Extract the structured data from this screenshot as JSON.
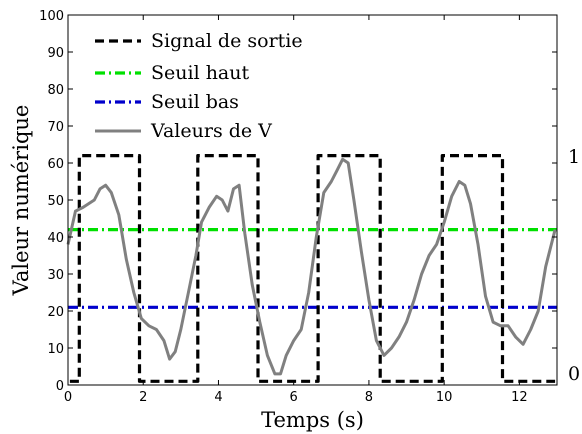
{
  "chart_data": {
    "type": "line",
    "xlabel": "Temps (s)",
    "ylabel": "Valeur numérique",
    "xlim": [
      0,
      13
    ],
    "ylim": [
      0,
      100
    ],
    "x_ticks": [
      0,
      2,
      4,
      6,
      8,
      10,
      12
    ],
    "y_ticks": [
      0,
      10,
      20,
      30,
      40,
      50,
      60,
      70,
      80,
      90,
      100
    ],
    "right_axis_ticks": [
      "1",
      "0"
    ],
    "legend_position": "top-left",
    "grid": false,
    "series": [
      {
        "name": "Signal de sortie",
        "style": "dashed",
        "color": "#000000",
        "x": [
          0.05,
          0.3,
          0.3,
          1.9,
          1.9,
          3.45,
          3.45,
          5.05,
          5.05,
          6.65,
          6.65,
          8.3,
          8.3,
          9.95,
          9.95,
          11.55,
          11.55,
          12.95
        ],
        "y": [
          1,
          1,
          62,
          62,
          1,
          1,
          62,
          62,
          1,
          1,
          62,
          62,
          1,
          1,
          62,
          62,
          1,
          1
        ]
      },
      {
        "name": "Seuil haut",
        "style": "dash-dot",
        "color": "#00e000",
        "x": [
          0,
          13
        ],
        "y": [
          42,
          42
        ]
      },
      {
        "name": "Seuil bas",
        "style": "dash-dot",
        "color": "#0000cc",
        "x": [
          0,
          13
        ],
        "y": [
          21,
          21
        ]
      },
      {
        "name": "Valeurs de V",
        "style": "solid",
        "color": "#808080",
        "x": [
          0,
          0.2,
          0.4,
          0.7,
          0.85,
          1.0,
          1.15,
          1.35,
          1.55,
          1.75,
          1.95,
          2.15,
          2.35,
          2.55,
          2.7,
          2.85,
          3.0,
          3.2,
          3.4,
          3.55,
          3.75,
          3.95,
          4.1,
          4.25,
          4.4,
          4.55,
          4.7,
          4.9,
          5.1,
          5.3,
          5.5,
          5.65,
          5.8,
          6.0,
          6.2,
          6.4,
          6.6,
          6.8,
          7.0,
          7.15,
          7.3,
          7.45,
          7.6,
          7.8,
          8.0,
          8.2,
          8.4,
          8.6,
          8.8,
          9.0,
          9.2,
          9.4,
          9.6,
          9.8,
          10.0,
          10.2,
          10.4,
          10.55,
          10.7,
          10.9,
          11.1,
          11.3,
          11.5,
          11.7,
          11.9,
          12.1,
          12.3,
          12.5,
          12.7,
          12.95
        ],
        "y": [
          38,
          47,
          48,
          50,
          53,
          54,
          52,
          46,
          34,
          25,
          18,
          16,
          15,
          12,
          7,
          9,
          15,
          25,
          35,
          44,
          48,
          51,
          50,
          47,
          53,
          54,
          41,
          27,
          17,
          8,
          3,
          3,
          8,
          12,
          15,
          25,
          40,
          52,
          55,
          58,
          61,
          60,
          50,
          36,
          23,
          12,
          8,
          10,
          13,
          17,
          23,
          30,
          35,
          38,
          44,
          51,
          55,
          54,
          49,
          38,
          24,
          17,
          16,
          16,
          13,
          11,
          15,
          20,
          32,
          42
        ]
      }
    ]
  }
}
